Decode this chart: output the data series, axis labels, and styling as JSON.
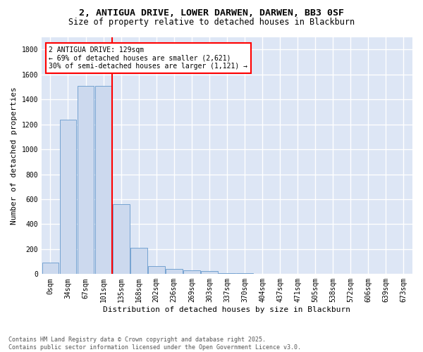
{
  "title_line1": "2, ANTIGUA DRIVE, LOWER DARWEN, DARWEN, BB3 0SF",
  "title_line2": "Size of property relative to detached houses in Blackburn",
  "xlabel": "Distribution of detached houses by size in Blackburn",
  "ylabel": "Number of detached properties",
  "bar_color": "#ccd9ee",
  "bar_edge_color": "#6699cc",
  "vline_color": "red",
  "annotation_line1": "2 ANTIGUA DRIVE: 129sqm",
  "annotation_line2": "← 69% of detached houses are smaller (2,621)",
  "annotation_line3": "30% of semi-detached houses are larger (1,121) →",
  "annotation_box_color": "white",
  "annotation_box_edge": "red",
  "categories": [
    "0sqm",
    "34sqm",
    "67sqm",
    "101sqm",
    "135sqm",
    "168sqm",
    "202sqm",
    "236sqm",
    "269sqm",
    "303sqm",
    "337sqm",
    "370sqm",
    "404sqm",
    "437sqm",
    "471sqm",
    "505sqm",
    "538sqm",
    "572sqm",
    "606sqm",
    "639sqm",
    "673sqm"
  ],
  "values": [
    90,
    1235,
    1510,
    1510,
    560,
    210,
    65,
    43,
    32,
    25,
    10,
    8,
    3,
    1,
    0,
    0,
    0,
    0,
    0,
    0,
    0
  ],
  "ylim": [
    0,
    1900
  ],
  "yticks": [
    0,
    200,
    400,
    600,
    800,
    1000,
    1200,
    1400,
    1600,
    1800
  ],
  "background_color": "#dde6f5",
  "grid_color": "white",
  "footnote": "Contains HM Land Registry data © Crown copyright and database right 2025.\nContains public sector information licensed under the Open Government Licence v3.0.",
  "title_fontsize": 9.5,
  "subtitle_fontsize": 8.5,
  "axis_label_fontsize": 8,
  "tick_fontsize": 7,
  "footnote_fontsize": 6
}
